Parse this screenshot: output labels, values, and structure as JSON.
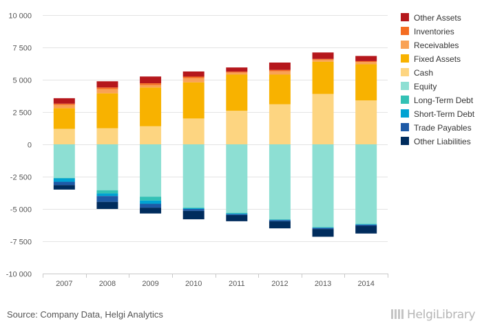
{
  "chart_data": {
    "type": "bar",
    "stacked": true,
    "categories": [
      "2007",
      "2008",
      "2009",
      "2010",
      "2011",
      "2012",
      "2013",
      "2014"
    ],
    "ylim": [
      -10000,
      10000
    ],
    "yticks": [
      10000,
      7500,
      5000,
      2500,
      0,
      -2500,
      -5000,
      -7500,
      -10000
    ],
    "ytick_labels": [
      "10 000",
      "7 500",
      "5 000",
      "2 500",
      "0",
      "-2 500",
      "-5 000",
      "-7 500",
      "-10 000"
    ],
    "grid": true,
    "legend_position": "right",
    "series": [
      {
        "name": "Other Assets",
        "color": "#b5171c",
        "values": [
          420,
          480,
          520,
          400,
          320,
          570,
          500,
          400
        ]
      },
      {
        "name": "Inventories",
        "color": "#f46d22",
        "values": [
          100,
          120,
          130,
          110,
          80,
          100,
          60,
          60
        ]
      },
      {
        "name": "Receivables",
        "color": "#f9a255",
        "values": [
          250,
          330,
          200,
          330,
          150,
          260,
          150,
          180
        ]
      },
      {
        "name": "Fixed Assets",
        "color": "#f8b200",
        "values": [
          1600,
          2700,
          3000,
          2800,
          2800,
          2300,
          2500,
          2800
        ]
      },
      {
        "name": "Cash",
        "color": "#fdd581",
        "values": [
          1200,
          1250,
          1400,
          2000,
          2600,
          3100,
          3900,
          3400
        ]
      },
      {
        "name": "Equity",
        "color": "#8ddfd3",
        "values": [
          -2600,
          -3550,
          -4050,
          -4900,
          -5300,
          -5800,
          -6400,
          -6150
        ]
      },
      {
        "name": "Long-Term Debt",
        "color": "#33c1b5",
        "values": [
          -30,
          -250,
          -300,
          -50,
          -50,
          -40,
          -40,
          -40
        ]
      },
      {
        "name": "Short-Term Debt",
        "color": "#00a2d2",
        "values": [
          -270,
          -200,
          -250,
          -50,
          -50,
          -20,
          -30,
          -30
        ]
      },
      {
        "name": "Trade Payables",
        "color": "#1e5aa6",
        "values": [
          -250,
          -450,
          -300,
          -150,
          -70,
          -100,
          -80,
          -80
        ]
      },
      {
        "name": "Other Liabilities",
        "color": "#002c5d",
        "values": [
          -350,
          -550,
          -450,
          -650,
          -480,
          -540,
          -600,
          -600
        ]
      }
    ]
  },
  "footer": {
    "source": "Source: Company Data, Helgi Analytics",
    "brand": "HelgiLibrary"
  }
}
